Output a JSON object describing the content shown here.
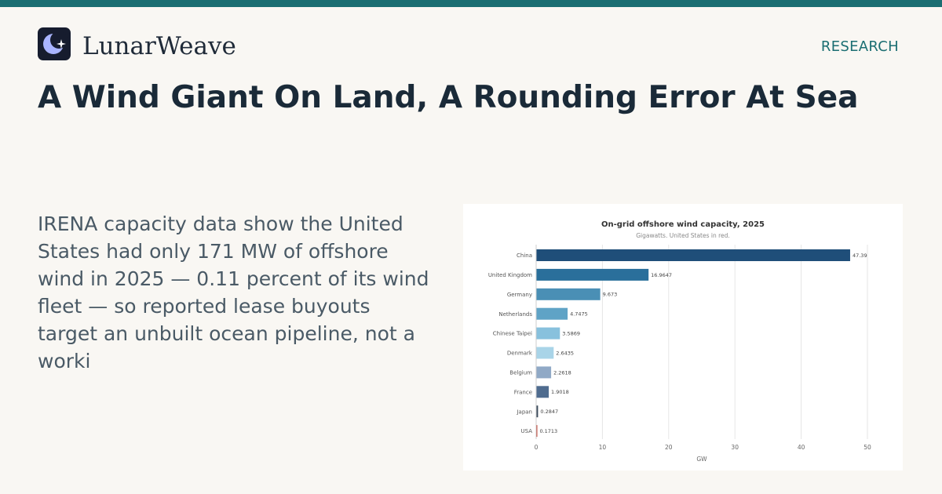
{
  "brand": {
    "name": "LunarWeave",
    "logo_icon": "crescent-moon-sparkle-icon"
  },
  "nav": {
    "section_label": "RESEARCH"
  },
  "article": {
    "headline": "A Wind Giant On Land, A Rounding Error At Sea",
    "dek": "IRENA capacity data show the United States had only 171 MW of offshore wind in 2025 — 0.11 percent of its wind fleet — so reported lease buyouts target an unbuilt ocean pipeline, not a worki"
  },
  "colors": {
    "accent": "#1b6e72",
    "highlight": "#c0392b",
    "page_background": "#f9f7f3",
    "bars": [
      "#1f4e79",
      "#2a6f9b",
      "#4a8fb5",
      "#5fa3c6",
      "#88c1dd",
      "#a9d4e8",
      "#90a9c6",
      "#4f6c8f",
      "#3b4b5c",
      "#c0392b"
    ]
  },
  "chart_data": {
    "type": "bar",
    "orientation": "horizontal",
    "title": "On-grid offshore wind capacity, 2025",
    "subtitle": "Gigawatts. United States in red.",
    "xlabel": "GW",
    "ylabel": "",
    "xlim": [
      0,
      50
    ],
    "xticks": [
      0,
      10,
      20,
      30,
      40,
      50
    ],
    "grid": true,
    "categories": [
      "China",
      "United Kingdom",
      "Germany",
      "Netherlands",
      "Chinese Taipei",
      "Denmark",
      "Belgium",
      "France",
      "Japan",
      "USA"
    ],
    "values": [
      47.39,
      16.9647,
      9.673,
      4.7475,
      3.5869,
      2.6435,
      2.2618,
      1.9018,
      0.2847,
      0.1713
    ],
    "value_labels": [
      "47.39",
      "16.9647",
      "9.673",
      "4.7475",
      "3.5869",
      "2.6435",
      "2.2618",
      "1.9018",
      "0.2847",
      "0.1713"
    ],
    "highlight_category": "USA"
  }
}
